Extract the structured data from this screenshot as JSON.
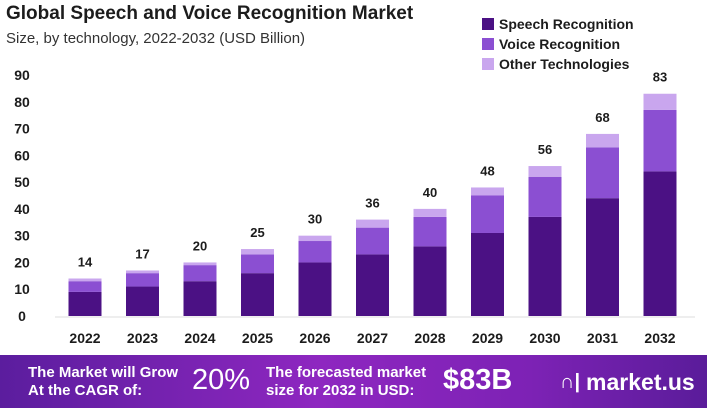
{
  "chart_data": {
    "type": "bar",
    "stacked": true,
    "title": "Global Speech and Voice Recognition Market",
    "subtitle": "Size, by technology, 2022-2032 (USD Billion)",
    "categories": [
      "2022",
      "2023",
      "2024",
      "2025",
      "2026",
      "2027",
      "2028",
      "2029",
      "2030",
      "2031",
      "2032"
    ],
    "series": [
      {
        "name": "Speech Recognition",
        "color": "#4b1184",
        "values": [
          9,
          11,
          13,
          16,
          20,
          23,
          26,
          31,
          37,
          44,
          54
        ]
      },
      {
        "name": "Voice Recognition",
        "color": "#8b4fd2",
        "values": [
          4,
          5,
          6,
          7,
          8,
          10,
          11,
          14,
          15,
          19,
          23
        ]
      },
      {
        "name": "Other Technologies",
        "color": "#c9a6ee",
        "values": [
          1,
          1,
          1,
          2,
          2,
          3,
          3,
          3,
          4,
          5,
          6
        ]
      }
    ],
    "totals": [
      "14",
      "17",
      "20",
      "25",
      "30",
      "36",
      "40",
      "48",
      "56",
      "68",
      "83"
    ],
    "ylim": [
      0,
      90
    ],
    "yticks": [
      "0",
      "10",
      "20",
      "30",
      "40",
      "50",
      "60",
      "70",
      "80",
      "90"
    ],
    "grid": false,
    "legend": "top-right"
  },
  "footer": {
    "cagr_text_1": "The Market will Grow",
    "cagr_text_2": "At the CAGR of:",
    "cagr_value": "20%",
    "size_text_1": "The forecasted market",
    "size_text_2": "size for 2032 in USD:",
    "size_value": "$83B",
    "logo": "market.us"
  }
}
